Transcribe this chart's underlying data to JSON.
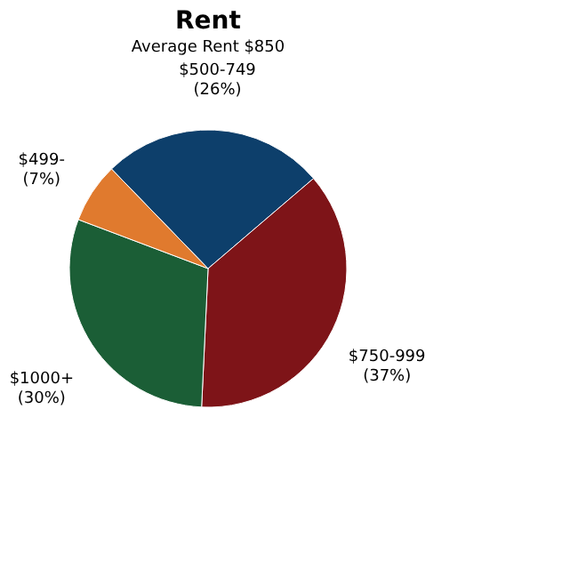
{
  "chart_data": {
    "type": "pie",
    "title": "Rent",
    "subtitle": "Average Rent  $850",
    "categories": [
      "$500-749",
      "$750-999",
      "$1000+",
      "$499-"
    ],
    "values": [
      26,
      37,
      30,
      7
    ],
    "value_labels": [
      "(26%)",
      "(37%)",
      "(30%)",
      "(7%)"
    ],
    "colors": [
      "#0d3f6b",
      "#7e1418",
      "#1b5e36",
      "#e07a2e"
    ],
    "legend": false
  }
}
